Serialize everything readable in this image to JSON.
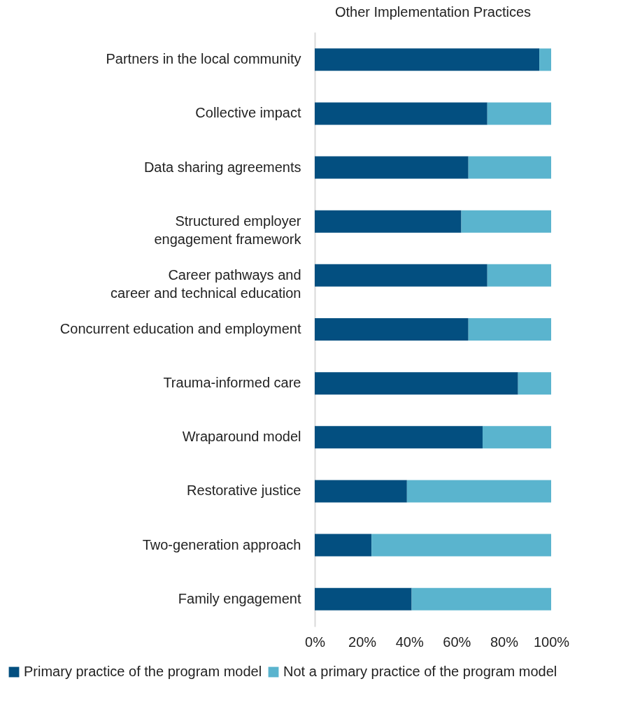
{
  "chart_data": {
    "type": "bar",
    "orientation": "horizontal",
    "stacked": true,
    "title": "Other Implementation Practices",
    "categories": [
      "Partners in the local community",
      "Collective impact",
      "Data sharing agreements",
      "Structured employer\nengagement framework",
      "Career pathways and\ncareer and technical education",
      "Concurrent education and employment",
      "Trauma-informed care",
      "Wraparound model",
      "Restorative justice",
      "Two-generation approach",
      "Family engagement"
    ],
    "series": [
      {
        "name": "Primary practice of the program model",
        "color": "#034f80",
        "values": [
          95,
          73,
          65,
          62,
          73,
          65,
          86,
          71,
          39,
          24,
          41
        ]
      },
      {
        "name": "Not a primary practice of the program model",
        "color": "#5ab4ce",
        "values": [
          5,
          27,
          35,
          38,
          27,
          35,
          14,
          29,
          61,
          76,
          59
        ]
      }
    ],
    "xlim": [
      0,
      100
    ],
    "xticks": [
      {
        "value": 0,
        "label": "0%"
      },
      {
        "value": 20,
        "label": "20%"
      },
      {
        "value": 40,
        "label": "40%"
      },
      {
        "value": 60,
        "label": "60%"
      },
      {
        "value": 80,
        "label": "80%"
      },
      {
        "value": 100,
        "label": "100%"
      }
    ],
    "grid": false,
    "legend": "bottom"
  }
}
